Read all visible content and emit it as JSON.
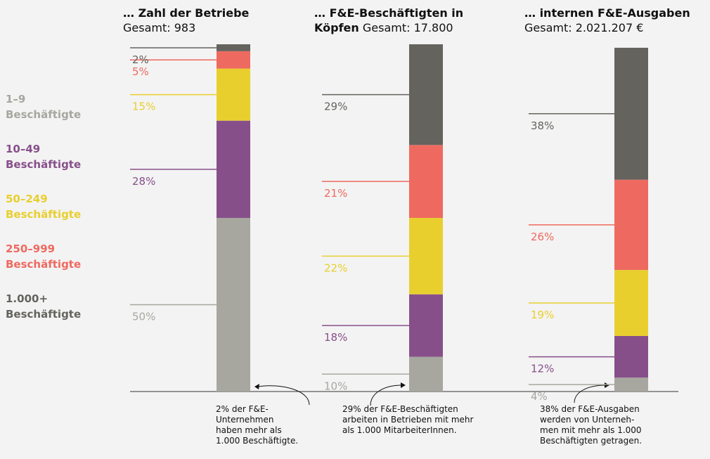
{
  "chart_data": {
    "type": "bar",
    "stacked": true,
    "categories": [
      "… Zahl der Betriebe",
      "… F&E-Beschäftigten in Köpfen",
      "… internen F&E-Ausgaben"
    ],
    "subtitles": [
      "Gesamt: 983",
      "Gesamt: 17.800",
      "Gesamt: 2.021.207 €"
    ],
    "ylim": [
      0,
      100
    ],
    "series": [
      {
        "name": "1–9\nBeschäftigte",
        "color": "#a7a7a0",
        "values": [
          50,
          10,
          4
        ],
        "value_labels": [
          "50%",
          "10%",
          "4%"
        ]
      },
      {
        "name": "10–49\nBeschäftigte",
        "color": "#874f8a",
        "values": [
          28,
          18,
          12
        ],
        "value_labels": [
          "28%",
          "18%",
          "12%"
        ]
      },
      {
        "name": "50–249\nBeschäftigte",
        "color": "#e8cf2e",
        "values": [
          15,
          22,
          19
        ],
        "value_labels": [
          "15%",
          "22%",
          "19%"
        ]
      },
      {
        "name": "250–999\nBeschäftigte",
        "color": "#ee6a60",
        "values": [
          5,
          21,
          26
        ],
        "value_labels": [
          "5%",
          "21%",
          "26%"
        ]
      },
      {
        "name": "1.000+\nBeschäftigte",
        "color": "#64635e",
        "values": [
          2,
          29,
          38
        ],
        "value_labels": [
          "2%",
          "29%",
          "38%"
        ]
      }
    ],
    "annotations": [
      "2% der F&E-\nUnternehmen\nhaben mehr als\n1.000 Beschäftigte.",
      "29% der F&E-Beschäftigten\narbeiten in Betrieben mit mehr\nals 1.000 MitarbeiterInnen.",
      "38% der F&E-Ausgaben\nwerden von Unterneh-\nmen mit mehr als 1.000\nBeschäftigten getragen."
    ]
  }
}
